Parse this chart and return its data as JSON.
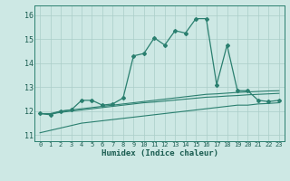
{
  "x": [
    0,
    1,
    2,
    3,
    4,
    5,
    6,
    7,
    8,
    9,
    10,
    11,
    12,
    13,
    14,
    15,
    16,
    17,
    18,
    19,
    20,
    21,
    22,
    23
  ],
  "line_main": [
    11.9,
    11.85,
    12.0,
    12.05,
    12.45,
    12.45,
    12.25,
    12.3,
    12.55,
    14.3,
    14.4,
    15.05,
    14.75,
    15.35,
    15.25,
    15.85,
    15.85,
    13.1,
    14.75,
    12.85,
    12.85,
    12.45,
    12.4,
    12.45
  ],
  "smooth1": [
    11.9,
    11.9,
    12.0,
    12.05,
    12.1,
    12.15,
    12.2,
    12.25,
    12.3,
    12.35,
    12.4,
    12.45,
    12.5,
    12.55,
    12.6,
    12.65,
    12.7,
    12.72,
    12.75,
    12.78,
    12.8,
    12.82,
    12.84,
    12.85
  ],
  "smooth2": [
    11.9,
    11.88,
    11.95,
    12.0,
    12.05,
    12.1,
    12.15,
    12.2,
    12.25,
    12.3,
    12.35,
    12.38,
    12.42,
    12.46,
    12.5,
    12.54,
    12.58,
    12.6,
    12.63,
    12.65,
    12.68,
    12.7,
    12.72,
    12.74
  ],
  "smooth3": [
    11.1,
    11.2,
    11.3,
    11.4,
    11.5,
    11.55,
    11.6,
    11.65,
    11.7,
    11.75,
    11.8,
    11.85,
    11.9,
    11.95,
    12.0,
    12.05,
    12.1,
    12.15,
    12.2,
    12.25,
    12.25,
    12.3,
    12.32,
    12.35
  ],
  "line_color": "#2a7f6f",
  "bg_color": "#cde8e4",
  "grid_color": "#aacdc8",
  "xlabel": "Humidex (Indice chaleur)",
  "xlim": [
    -0.5,
    23.5
  ],
  "ylim": [
    10.75,
    16.4
  ],
  "yticks": [
    11,
    12,
    13,
    14,
    15,
    16
  ],
  "xticks": [
    0,
    1,
    2,
    3,
    4,
    5,
    6,
    7,
    8,
    9,
    10,
    11,
    12,
    13,
    14,
    15,
    16,
    17,
    18,
    19,
    20,
    21,
    22,
    23
  ]
}
